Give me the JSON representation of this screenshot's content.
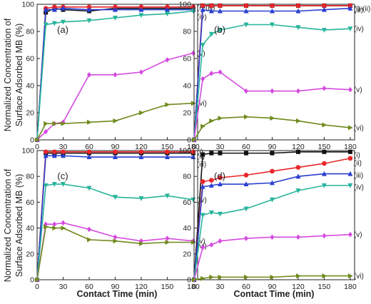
{
  "figure": {
    "ylabel_line1": "Normalized Concentration of",
    "ylabel_line2": "Surface Adsorbed MB (%)",
    "xlabel": "Contact Time (min)"
  },
  "colors": {
    "i": "#111111",
    "ii": "#e8262a",
    "iii": "#2a3fd0",
    "iv": "#27b49b",
    "v": "#d54ae0",
    "vi": "#6f8a1c"
  },
  "chart_data": [
    {
      "type": "line",
      "panel_label": "(a)",
      "x": [
        0,
        10,
        20,
        30,
        60,
        90,
        120,
        150,
        180
      ],
      "xticks": [
        0,
        30,
        60,
        90,
        120,
        150,
        180
      ],
      "yticks": [
        0,
        20,
        40,
        60,
        80,
        100
      ],
      "xlim": [
        0,
        185
      ],
      "ylim": [
        0,
        100
      ],
      "series": [
        {
          "key": "i",
          "name": "(i)-(iii)",
          "marker": "square",
          "values": [
            0,
            94,
            97,
            96,
            95,
            97,
            97,
            97,
            97
          ]
        },
        {
          "key": "ii",
          "name": "",
          "marker": "circle",
          "values": [
            0,
            97,
            98,
            98,
            98,
            98,
            98,
            98,
            98
          ]
        },
        {
          "key": "iii",
          "name": "",
          "marker": "triangle-up",
          "values": [
            0,
            96,
            96,
            97,
            96,
            96,
            96,
            96,
            96
          ]
        },
        {
          "key": "iv",
          "name": "(iv)",
          "marker": "triangle-down",
          "values": [
            0,
            85,
            86,
            87,
            88,
            90,
            92,
            93,
            95
          ]
        },
        {
          "key": "v",
          "name": "(v)",
          "marker": "diamond",
          "values": [
            0,
            6,
            12,
            13,
            48,
            48,
            50,
            59,
            64
          ]
        },
        {
          "key": "vi",
          "name": "(vi)",
          "marker": "triangle-right",
          "values": [
            0,
            12,
            12,
            12,
            13,
            14,
            20,
            26,
            27
          ]
        }
      ]
    },
    {
      "type": "line",
      "panel_label": "(b)",
      "x": [
        0,
        10,
        20,
        30,
        60,
        90,
        120,
        150,
        180
      ],
      "xticks": [
        0,
        30,
        60,
        90,
        120,
        150,
        180
      ],
      "yticks": [
        0,
        20,
        40,
        60,
        80,
        100
      ],
      "xlim": [
        0,
        185
      ],
      "ylim": [
        0,
        100
      ],
      "series": [
        {
          "key": "i",
          "name": "(i)-(ii)",
          "marker": "square",
          "values": [
            0,
            99,
            99,
            99,
            99,
            99,
            99,
            99,
            99
          ]
        },
        {
          "key": "ii",
          "name": "",
          "marker": "circle",
          "values": [
            0,
            99,
            99,
            99,
            99,
            99,
            99,
            99,
            99
          ]
        },
        {
          "key": "iii",
          "name": "(iii)",
          "marker": "triangle-up",
          "values": [
            0,
            96,
            95,
            95,
            95,
            95,
            95,
            96,
            97
          ]
        },
        {
          "key": "iv",
          "name": "(iv)",
          "marker": "triangle-down",
          "values": [
            0,
            70,
            78,
            81,
            85,
            85,
            83,
            81,
            82
          ]
        },
        {
          "key": "v",
          "name": "(v)",
          "marker": "diamond",
          "values": [
            0,
            45,
            49,
            50,
            36,
            36,
            36,
            38,
            37
          ]
        },
        {
          "key": "vi",
          "name": "(vi)",
          "marker": "triangle-right",
          "values": [
            0,
            10,
            14,
            16,
            17,
            16,
            14,
            11,
            9
          ]
        }
      ]
    },
    {
      "type": "line",
      "panel_label": "(c)",
      "x": [
        0,
        10,
        20,
        30,
        60,
        90,
        120,
        150,
        180
      ],
      "xticks": [
        0,
        30,
        60,
        90,
        120,
        150,
        180
      ],
      "yticks": [
        0,
        20,
        40,
        60,
        80,
        100
      ],
      "xlim": [
        0,
        185
      ],
      "ylim": [
        0,
        100
      ],
      "series": [
        {
          "key": "i",
          "name": "(i)",
          "marker": "square",
          "values": [
            0,
            98,
            98,
            98,
            98,
            98,
            98,
            98,
            98
          ]
        },
        {
          "key": "ii",
          "name": "(ii)",
          "marker": "circle",
          "values": [
            0,
            99,
            99,
            99,
            99,
            99,
            99,
            99,
            99
          ]
        },
        {
          "key": "iii",
          "name": "(iii)",
          "marker": "triangle-up",
          "values": [
            0,
            96,
            96,
            96,
            95,
            95,
            95,
            95,
            95
          ]
        },
        {
          "key": "iv",
          "name": "(iv)",
          "marker": "triangle-down",
          "values": [
            0,
            73,
            74,
            74,
            71,
            64,
            63,
            65,
            62
          ]
        },
        {
          "key": "v",
          "name": "(v)",
          "marker": "diamond",
          "values": [
            0,
            43,
            43,
            44,
            39,
            33,
            30,
            32,
            30
          ]
        },
        {
          "key": "vi",
          "name": "(vi)",
          "marker": "triangle-right",
          "values": [
            0,
            41,
            40,
            40,
            31,
            30,
            28,
            29,
            29
          ]
        }
      ]
    },
    {
      "type": "line",
      "panel_label": "(d)",
      "x": [
        0,
        10,
        20,
        30,
        60,
        90,
        120,
        150,
        180
      ],
      "xticks": [
        0,
        30,
        60,
        90,
        120,
        150,
        180
      ],
      "yticks": [
        0,
        20,
        40,
        60,
        80,
        100
      ],
      "xlim": [
        0,
        185
      ],
      "ylim": [
        0,
        100
      ],
      "series": [
        {
          "key": "i",
          "name": "(i)",
          "marker": "square",
          "values": [
            0,
            97,
            98,
            98,
            98,
            98,
            99,
            99,
            99
          ]
        },
        {
          "key": "ii",
          "name": "(ii)",
          "marker": "circle",
          "values": [
            0,
            76,
            77,
            79,
            81,
            84,
            87,
            90,
            94
          ]
        },
        {
          "key": "iii",
          "name": "(iii)",
          "marker": "triangle-up",
          "values": [
            0,
            72,
            73,
            74,
            74,
            75,
            80,
            82,
            82
          ]
        },
        {
          "key": "iv",
          "name": "(iv)",
          "marker": "triangle-down",
          "values": [
            0,
            50,
            52,
            51,
            55,
            62,
            69,
            73,
            73
          ]
        },
        {
          "key": "v",
          "name": "(v)",
          "marker": "diamond",
          "values": [
            0,
            25,
            27,
            30,
            32,
            33,
            33,
            34,
            35
          ]
        },
        {
          "key": "vi",
          "name": "(vi)",
          "marker": "triangle-right",
          "values": [
            0,
            1,
            2,
            2,
            2,
            2,
            3,
            3,
            3
          ]
        }
      ]
    }
  ]
}
